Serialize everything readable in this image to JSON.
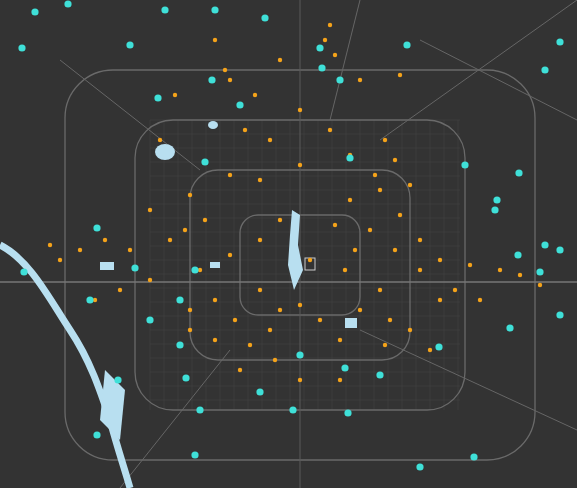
{
  "chart_data": {
    "type": "scatter",
    "xlim": [
      0,
      577
    ],
    "ylim": [
      0,
      488
    ],
    "tick_labels": false,
    "grid": false,
    "series": [
      {
        "color": "#f5a31a",
        "marker": "circle",
        "x": [
          330,
          325,
          215,
          225,
          280,
          360,
          400,
          255,
          300,
          385,
          395,
          375,
          410,
          350,
          300,
          260,
          230,
          190,
          185,
          170,
          130,
          105,
          80,
          60,
          50,
          150,
          200,
          230,
          260,
          280,
          335,
          370,
          400,
          420,
          440,
          470,
          500,
          520,
          540,
          455,
          380,
          360,
          390,
          410,
          385,
          340,
          320,
          300,
          280,
          270,
          250,
          235,
          215,
          190,
          240,
          275,
          300,
          340,
          430,
          440,
          480,
          160,
          175,
          245,
          330,
          350,
          270,
          205,
          310,
          345,
          215,
          190,
          260,
          420,
          230,
          335,
          150,
          120,
          95,
          380,
          355,
          395
        ],
        "y": [
          25,
          40,
          40,
          70,
          60,
          80,
          75,
          95,
          110,
          140,
          160,
          175,
          185,
          200,
          165,
          180,
          175,
          195,
          230,
          240,
          250,
          240,
          250,
          260,
          245,
          280,
          270,
          255,
          240,
          220,
          225,
          230,
          215,
          240,
          260,
          265,
          270,
          275,
          285,
          290,
          290,
          310,
          320,
          330,
          345,
          340,
          320,
          305,
          310,
          330,
          345,
          320,
          300,
          310,
          370,
          360,
          380,
          380,
          350,
          300,
          300,
          140,
          95,
          130,
          130,
          155,
          140,
          220,
          260,
          270,
          340,
          330,
          290,
          270,
          80,
          55,
          210,
          290,
          300,
          190,
          250,
          250
        ]
      },
      {
        "color": "#3fe0d8",
        "marker": "circle",
        "x": [
          35,
          68,
          165,
          215,
          265,
          22,
          130,
          320,
          322,
          407,
          560,
          545,
          240,
          340,
          212,
          158,
          350,
          205,
          97,
          24,
          545,
          560,
          540,
          518,
          497,
          495,
          519,
          465,
          135,
          90,
          180,
          195,
          150,
          180,
          186,
          118,
          97,
          200,
          260,
          293,
          345,
          380,
          439,
          510,
          474,
          420,
          348,
          195,
          560,
          300
        ],
        "y": [
          12,
          4,
          10,
          10,
          18,
          48,
          45,
          48,
          68,
          45,
          42,
          70,
          105,
          80,
          80,
          98,
          158,
          162,
          228,
          272,
          245,
          250,
          272,
          255,
          200,
          210,
          173,
          165,
          268,
          300,
          300,
          270,
          320,
          345,
          378,
          380,
          435,
          410,
          392,
          410,
          368,
          375,
          347,
          328,
          457,
          467,
          413,
          455,
          315,
          355
        ]
      }
    ]
  }
}
